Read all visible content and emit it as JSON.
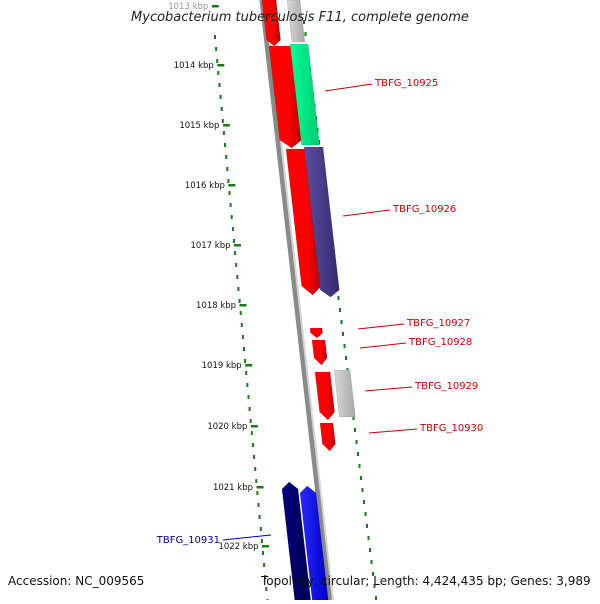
{
  "title": "Mycobacterium tuberculosis F11, complete genome",
  "accession_text": "Accession: NC_009565",
  "topology_text": "Topology: circular; Length: 4,424,435 bp; Genes: 3,989",
  "colors": {
    "ruler": "#1a7a1a",
    "backbone_dark": "#808080",
    "backbone_light": "#c0c0c0",
    "red": "#ff0000",
    "red_dark": "#c00000",
    "green": "#00ff88",
    "purple": "#4b3f8c",
    "gray": "#c0c0c0",
    "navy": "#00006e",
    "blue": "#0000ff",
    "label_red": "#cc0000",
    "label_blue": "#000099"
  },
  "ruler_ticks": [
    {
      "label": "1013 kbp",
      "kbp": 1013
    },
    {
      "label": "1014 kbp",
      "kbp": 1014
    },
    {
      "label": "1015 kbp",
      "kbp": 1015
    },
    {
      "label": "1016 kbp",
      "kbp": 1016
    },
    {
      "label": "1017 kbp",
      "kbp": 1017
    },
    {
      "label": "1018 kbp",
      "kbp": 1018
    },
    {
      "label": "1019 kbp",
      "kbp": 1019
    },
    {
      "label": "1020 kbp",
      "kbp": 1020
    },
    {
      "label": "1021 kbp",
      "kbp": 1021
    },
    {
      "label": "1022 kbp",
      "kbp": 1022
    }
  ],
  "gene_labels": [
    {
      "id": "TBFG_10925",
      "color": "label_red"
    },
    {
      "id": "TBFG_10926",
      "color": "label_red"
    },
    {
      "id": "TBFG_10927",
      "color": "label_red"
    },
    {
      "id": "TBFG_10928",
      "color": "label_red"
    },
    {
      "id": "TBFG_10929",
      "color": "label_red"
    },
    {
      "id": "TBFG_10930",
      "color": "label_red"
    },
    {
      "id": "TBFG_10931",
      "color": "label_blue"
    }
  ]
}
